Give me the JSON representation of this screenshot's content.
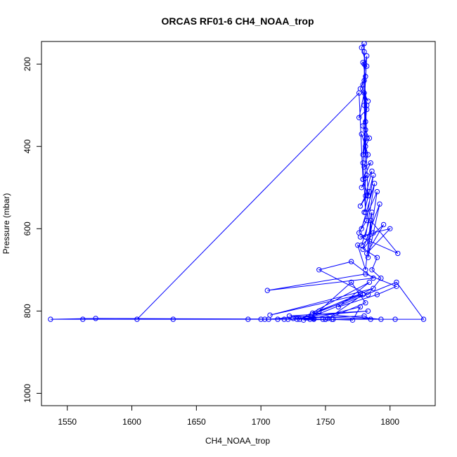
{
  "chart_data": {
    "type": "line",
    "title": "ORCAS RF01-6 CH4_NOAA_trop",
    "xlabel": "CH4_NOAA_trop",
    "ylabel": "Pressure (mbar)",
    "xlim": [
      1530,
      1835
    ],
    "ylim": [
      1030,
      145
    ],
    "y_reversed": true,
    "xticks": [
      1550,
      1600,
      1650,
      1700,
      1750,
      1800
    ],
    "yticks": [
      200,
      400,
      600,
      800,
      1000
    ],
    "grid": false,
    "legend": "none",
    "series_color": "#0000ff",
    "series": [
      {
        "marker": "open-circle",
        "x": [
          1780,
          1778,
          1782,
          1779,
          1781,
          1777,
          1783,
          1780,
          1776,
          1782,
          1779,
          1784,
          1781,
          1778,
          1783,
          1780,
          1785,
          1779,
          1782,
          1778,
          1786,
          1781,
          1777,
          1784,
          1780,
          1787,
          1782,
          1778,
          1788,
          1781,
          1776,
          1790,
          1784,
          1779,
          1792,
          1783,
          1786,
          1778,
          1795,
          1782,
          1800,
          1787,
          1777,
          1806,
          1785,
          1781,
          1775,
          1790,
          1786,
          1793,
          1783,
          1745,
          1770,
          1787,
          1705,
          1781,
          1805,
          1790,
          1760,
          1784,
          1730,
          1779,
          1752,
          1781,
          1770,
          1745,
          1787,
          1707,
          1777,
          1740,
          1793,
          1722,
          1783,
          1706,
          1741,
          1777,
          1771,
          1725,
          1780,
          1785,
          1750,
          1826,
          1805,
          1733,
          1756,
          1804,
          1700,
          1718,
          1632,
          1748,
          1562,
          1537,
          1572,
          1755,
          1690,
          1703,
          1738,
          1728,
          1713,
          1741,
          1721,
          1750,
          1604,
          1776,
          1779,
          1783,
          1780,
          1782,
          1779,
          1781,
          1779,
          1782,
          1780,
          1781,
          1779,
          1782,
          1780,
          1781,
          1780,
          1781,
          1780
        ],
        "y": [
          150,
          160,
          205,
          196,
          230,
          260,
          290,
          270,
          330,
          310,
          350,
          380,
          400,
          370,
          420,
          450,
          440,
          480,
          470,
          500,
          460,
          520,
          545,
          510,
          560,
          470,
          580,
          600,
          490,
          620,
          610,
          510,
          630,
          650,
          540,
          670,
          560,
          640,
          590,
          660,
          600,
          610,
          620,
          660,
          580,
          700,
          640,
          670,
          700,
          720,
          760,
          700,
          680,
          720,
          750,
          710,
          740,
          760,
          790,
          730,
          820,
          760,
          818,
          780,
          730,
          800,
          745,
          810,
          760,
          805,
          820,
          812,
          800,
          820,
          818,
          790,
          822,
          818,
          812,
          820,
          820,
          820,
          730,
          822,
          820,
          820,
          820,
          820,
          820,
          820,
          820,
          820,
          818,
          820,
          820,
          820,
          820,
          820,
          820,
          820,
          820,
          820,
          820,
          270,
          480,
          520,
          300,
          180,
          250,
          340,
          420,
          380,
          200,
          560,
          440,
          300,
          240,
          360,
          170,
          420,
          150
        ]
      }
    ]
  }
}
